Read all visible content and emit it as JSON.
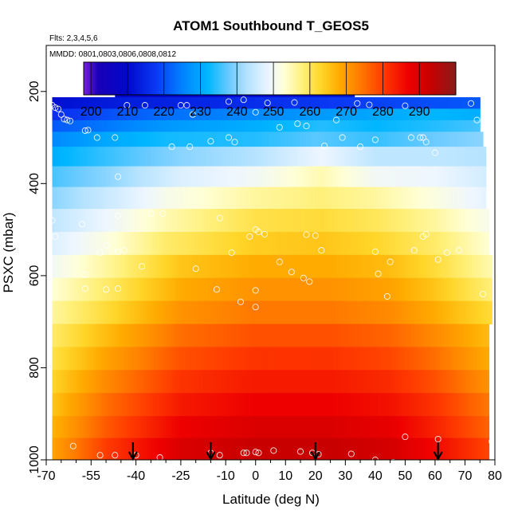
{
  "chart_data": {
    "type": "heatmap",
    "title": "ATOM1 Southbound T_GEOS5",
    "subtitle_flights": "Flts: 2,3,4,5,6",
    "subtitle_dates": "MMDD: 0801,0803,0806,0808,0812",
    "xlabel": "Latitude (deg N)",
    "ylabel": "PSXC (mbar)",
    "xlim": [
      -70,
      80
    ],
    "ylim": [
      1000,
      100
    ],
    "x_ticks": [
      -70,
      -55,
      -40,
      -25,
      -10,
      0,
      10,
      20,
      30,
      40,
      50,
      60,
      70,
      80
    ],
    "x_tick_labels": [
      "-70",
      "-55",
      "-40",
      "-25",
      "-10",
      "0",
      "10",
      "20",
      "30",
      "40",
      "50",
      "60",
      "70",
      "80"
    ],
    "x_minor_ticks": [
      -65,
      -60,
      -50,
      -45,
      -35,
      -30,
      -20,
      -15,
      -5,
      5,
      15,
      25,
      35,
      45,
      55,
      65,
      75
    ],
    "y_ticks": [
      200,
      400,
      600,
      800,
      1000
    ],
    "y_tick_labels": [
      "200",
      "400",
      "600",
      "800",
      "1000"
    ],
    "colorbar": {
      "min": 198,
      "max": 300,
      "tick_values": [
        200,
        210,
        220,
        230,
        240,
        250,
        260,
        270,
        280,
        290
      ],
      "tick_labels": [
        "200",
        "210",
        "220",
        "230",
        "240",
        "250",
        "260",
        "270",
        "280",
        "290"
      ],
      "stops": [
        {
          "value": 198,
          "color": "#7a1fe0"
        },
        {
          "value": 202,
          "color": "#1a00b8"
        },
        {
          "value": 210,
          "color": "#0008cc"
        },
        {
          "value": 218,
          "color": "#0a3af5"
        },
        {
          "value": 225,
          "color": "#0082ff"
        },
        {
          "value": 232,
          "color": "#00b6ff"
        },
        {
          "value": 238,
          "color": "#6ccbff"
        },
        {
          "value": 243,
          "color": "#b6e3ff"
        },
        {
          "value": 249,
          "color": "#eef6ff"
        },
        {
          "value": 253,
          "color": "#ffffd6"
        },
        {
          "value": 258,
          "color": "#fff07a"
        },
        {
          "value": 263,
          "color": "#ffd62a"
        },
        {
          "value": 268,
          "color": "#ffab00"
        },
        {
          "value": 273,
          "color": "#ff8200"
        },
        {
          "value": 280,
          "color": "#ff3c00"
        },
        {
          "value": 287,
          "color": "#ee0000"
        },
        {
          "value": 293,
          "color": "#c80000"
        },
        {
          "value": 300,
          "color": "#8a1a1a"
        }
      ]
    },
    "levels": [
      {
        "p": 200,
        "lat_min": -47,
        "lat_max": 33,
        "profile": [
          [
            -47,
            209
          ],
          [
            -20,
            210
          ],
          [
            10,
            211
          ],
          [
            33,
            213
          ]
        ]
      },
      {
        "p": 225,
        "lat_min": -68,
        "lat_max": 75,
        "profile": [
          [
            -68,
            211
          ],
          [
            -50,
            213
          ],
          [
            -30,
            214
          ],
          [
            0,
            216
          ],
          [
            30,
            218
          ],
          [
            60,
            220
          ],
          [
            75,
            221
          ]
        ]
      },
      {
        "p": 250,
        "lat_min": -68,
        "lat_max": 75,
        "profile": [
          [
            -68,
            216
          ],
          [
            -50,
            220
          ],
          [
            -30,
            223
          ],
          [
            0,
            226
          ],
          [
            30,
            229
          ],
          [
            60,
            232
          ],
          [
            75,
            231
          ]
        ]
      },
      {
        "p": 275,
        "lat_min": -68,
        "lat_max": 75,
        "profile": [
          [
            -68,
            221
          ],
          [
            -50,
            224
          ],
          [
            -30,
            228
          ],
          [
            0,
            231
          ],
          [
            22,
            234
          ],
          [
            40,
            232
          ],
          [
            60,
            234
          ],
          [
            75,
            236
          ]
        ]
      },
      {
        "p": 300,
        "lat_min": -68,
        "lat_max": 76,
        "profile": [
          [
            -68,
            226
          ],
          [
            -50,
            230
          ],
          [
            -30,
            233
          ],
          [
            0,
            234
          ],
          [
            20,
            237
          ],
          [
            40,
            235
          ],
          [
            60,
            238
          ],
          [
            76,
            240
          ]
        ]
      },
      {
        "p": 340,
        "lat_min": -68,
        "lat_max": 77,
        "profile": [
          [
            -68,
            231
          ],
          [
            -50,
            235
          ],
          [
            -25,
            240
          ],
          [
            0,
            243
          ],
          [
            22,
            249
          ],
          [
            40,
            244
          ],
          [
            60,
            244
          ],
          [
            77,
            243
          ]
        ]
      },
      {
        "p": 385,
        "lat_min": -68,
        "lat_max": 77,
        "profile": [
          [
            -68,
            236
          ],
          [
            -50,
            240
          ],
          [
            -25,
            247
          ],
          [
            0,
            250
          ],
          [
            22,
            255
          ],
          [
            40,
            250
          ],
          [
            60,
            249
          ],
          [
            77,
            246
          ]
        ]
      },
      {
        "p": 430,
        "lat_min": -68,
        "lat_max": 77,
        "profile": [
          [
            -68,
            240
          ],
          [
            -50,
            245
          ],
          [
            -30,
            251
          ],
          [
            0,
            256
          ],
          [
            22,
            258
          ],
          [
            40,
            256
          ],
          [
            60,
            252
          ],
          [
            77,
            248
          ]
        ]
      },
      {
        "p": 480,
        "lat_min": -68,
        "lat_max": 78,
        "profile": [
          [
            -68,
            244
          ],
          [
            -50,
            249
          ],
          [
            -30,
            255
          ],
          [
            0,
            261
          ],
          [
            22,
            262
          ],
          [
            40,
            260
          ],
          [
            60,
            256
          ],
          [
            78,
            251
          ]
        ]
      },
      {
        "p": 530,
        "lat_min": -68,
        "lat_max": 78,
        "profile": [
          [
            -68,
            247
          ],
          [
            -50,
            252
          ],
          [
            -30,
            259
          ],
          [
            0,
            264
          ],
          [
            22,
            265
          ],
          [
            40,
            263
          ],
          [
            60,
            259
          ],
          [
            78,
            253
          ]
        ]
      },
      {
        "p": 580,
        "lat_min": -68,
        "lat_max": 79,
        "profile": [
          [
            -68,
            250
          ],
          [
            -50,
            256
          ],
          [
            -25,
            265
          ],
          [
            0,
            268
          ],
          [
            25,
            268
          ],
          [
            45,
            266
          ],
          [
            60,
            262
          ],
          [
            79,
            255
          ]
        ]
      },
      {
        "p": 630,
        "lat_min": -68,
        "lat_max": 79,
        "profile": [
          [
            -68,
            253
          ],
          [
            -50,
            259
          ],
          [
            -25,
            268
          ],
          [
            0,
            271
          ],
          [
            25,
            271
          ],
          [
            45,
            269
          ],
          [
            60,
            265
          ],
          [
            79,
            258
          ]
        ]
      },
      {
        "p": 680,
        "lat_min": -68,
        "lat_max": 79,
        "profile": [
          [
            -68,
            256
          ],
          [
            -50,
            262
          ],
          [
            -25,
            271
          ],
          [
            0,
            274
          ],
          [
            25,
            274
          ],
          [
            45,
            272
          ],
          [
            60,
            268
          ],
          [
            79,
            262
          ]
        ]
      },
      {
        "p": 730,
        "lat_min": -68,
        "lat_max": 78,
        "profile": [
          [
            -68,
            259
          ],
          [
            -50,
            266
          ],
          [
            -25,
            275
          ],
          [
            0,
            278
          ],
          [
            25,
            278
          ],
          [
            45,
            276
          ],
          [
            60,
            272
          ],
          [
            78,
            266
          ]
        ]
      },
      {
        "p": 780,
        "lat_min": -68,
        "lat_max": 78,
        "profile": [
          [
            -68,
            261
          ],
          [
            -50,
            269
          ],
          [
            -25,
            278
          ],
          [
            0,
            281
          ],
          [
            25,
            281
          ],
          [
            45,
            279
          ],
          [
            60,
            275
          ],
          [
            78,
            268
          ]
        ]
      },
      {
        "p": 830,
        "lat_min": -68,
        "lat_max": 78,
        "profile": [
          [
            -68,
            263
          ],
          [
            -50,
            272
          ],
          [
            -25,
            281
          ],
          [
            0,
            284
          ],
          [
            25,
            284
          ],
          [
            45,
            282
          ],
          [
            60,
            278
          ],
          [
            78,
            271
          ]
        ]
      },
      {
        "p": 880,
        "lat_min": -68,
        "lat_max": 78,
        "profile": [
          [
            -68,
            265
          ],
          [
            -50,
            275
          ],
          [
            -25,
            284
          ],
          [
            0,
            287
          ],
          [
            25,
            287
          ],
          [
            45,
            285
          ],
          [
            60,
            281
          ],
          [
            78,
            274
          ]
        ]
      },
      {
        "p": 930,
        "lat_min": -68,
        "lat_max": 78,
        "profile": [
          [
            -68,
            267
          ],
          [
            -50,
            277
          ],
          [
            -25,
            287
          ],
          [
            0,
            290
          ],
          [
            25,
            290
          ],
          [
            45,
            288
          ],
          [
            60,
            283
          ],
          [
            78,
            276
          ]
        ]
      },
      {
        "p": 975,
        "lat_min": -68,
        "lat_max": 78,
        "profile": [
          [
            -68,
            269
          ],
          [
            -50,
            280
          ],
          [
            -25,
            290
          ],
          [
            0,
            293
          ],
          [
            25,
            293
          ],
          [
            45,
            291
          ],
          [
            60,
            286
          ],
          [
            78,
            279
          ]
        ]
      }
    ],
    "obs_points": [
      [
        -47,
        195
      ],
      [
        -68,
        230
      ],
      [
        -67,
        235
      ],
      [
        -66,
        238
      ],
      [
        -65,
        250
      ],
      [
        -64,
        260
      ],
      [
        -63,
        262
      ],
      [
        -62,
        264
      ],
      [
        -57,
        285
      ],
      [
        -56,
        284
      ],
      [
        -53,
        300
      ],
      [
        -47,
        300
      ],
      [
        -43,
        230
      ],
      [
        -37,
        230
      ],
      [
        -25,
        230
      ],
      [
        -23,
        230
      ],
      [
        -21,
        250
      ],
      [
        -9,
        222
      ],
      [
        -4,
        218
      ],
      [
        0,
        245
      ],
      [
        4,
        225
      ],
      [
        13,
        224
      ],
      [
        24,
        183
      ],
      [
        27,
        262
      ],
      [
        34,
        226
      ],
      [
        38,
        229
      ],
      [
        50,
        231
      ],
      [
        52,
        300
      ],
      [
        55,
        300
      ],
      [
        56,
        300
      ],
      [
        57,
        310
      ],
      [
        60,
        333
      ],
      [
        72,
        226
      ],
      [
        74,
        262
      ],
      [
        -68,
        480
      ],
      [
        -67,
        515
      ],
      [
        -58,
        488
      ],
      [
        -46,
        470
      ],
      [
        -46,
        385
      ],
      [
        -35,
        465
      ],
      [
        -31,
        465
      ],
      [
        -50,
        535
      ],
      [
        -52,
        550
      ],
      [
        -46,
        548
      ],
      [
        -44,
        545
      ],
      [
        -38,
        580
      ],
      [
        -57,
        598
      ],
      [
        -57,
        628
      ],
      [
        -50,
        630
      ],
      [
        -46,
        628
      ],
      [
        -28,
        320
      ],
      [
        -22,
        320
      ],
      [
        -15,
        308
      ],
      [
        -9,
        300
      ],
      [
        -7,
        310
      ],
      [
        -20,
        585
      ],
      [
        -13,
        630
      ],
      [
        -12,
        475
      ],
      [
        -8,
        550
      ],
      [
        -5,
        657
      ],
      [
        -2,
        515
      ],
      [
        0,
        500
      ],
      [
        1,
        505
      ],
      [
        3,
        510
      ],
      [
        0,
        632
      ],
      [
        0,
        668
      ],
      [
        8,
        278
      ],
      [
        14,
        270
      ],
      [
        17,
        275
      ],
      [
        17,
        511
      ],
      [
        20,
        513
      ],
      [
        22,
        545
      ],
      [
        12,
        592
      ],
      [
        16,
        605
      ],
      [
        18,
        613
      ],
      [
        23,
        318
      ],
      [
        29,
        300
      ],
      [
        35,
        320
      ],
      [
        40,
        305
      ],
      [
        40,
        548
      ],
      [
        41,
        596
      ],
      [
        44,
        645
      ],
      [
        45,
        570
      ],
      [
        53,
        545
      ],
      [
        56,
        515
      ],
      [
        57,
        510
      ],
      [
        61,
        565
      ],
      [
        64,
        550
      ],
      [
        68,
        545
      ],
      [
        76,
        640
      ],
      [
        8,
        570
      ],
      [
        -61,
        970
      ],
      [
        -52,
        990
      ],
      [
        -47,
        990
      ],
      [
        -40,
        990
      ],
      [
        -32,
        995
      ],
      [
        -15,
        985
      ],
      [
        -12,
        990
      ],
      [
        -4,
        985
      ],
      [
        -3,
        985
      ],
      [
        0,
        983
      ],
      [
        1,
        985
      ],
      [
        6,
        980
      ],
      [
        15,
        982
      ],
      [
        19,
        985
      ],
      [
        21,
        988
      ],
      [
        32,
        987
      ],
      [
        40,
        1000
      ],
      [
        46,
        1005
      ],
      [
        50,
        950
      ],
      [
        61,
        955
      ],
      [
        79,
        960
      ]
    ],
    "flight_markers_lat": [
      -41,
      -15,
      20,
      61
    ]
  }
}
